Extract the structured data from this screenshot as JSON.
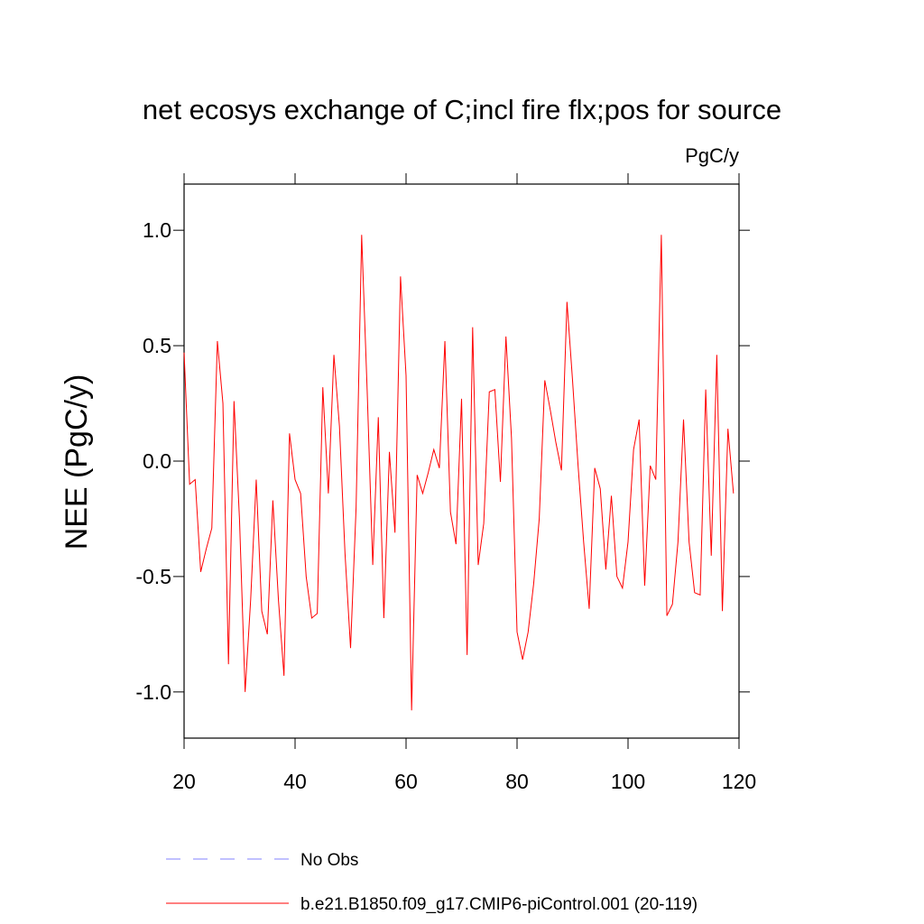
{
  "chart_data": {
    "type": "line",
    "title": "net ecosys exchange of C;incl fire flx;pos for source",
    "units": "PgC/y",
    "y_label": "NEE  (PgC/y)",
    "x": [
      20,
      21,
      22,
      23,
      24,
      25,
      26,
      27,
      28,
      29,
      30,
      31,
      32,
      33,
      34,
      35,
      36,
      37,
      38,
      39,
      40,
      41,
      42,
      43,
      44,
      45,
      46,
      47,
      48,
      49,
      50,
      51,
      52,
      53,
      54,
      55,
      56,
      57,
      58,
      59,
      60,
      61,
      62,
      63,
      64,
      65,
      66,
      67,
      68,
      69,
      70,
      71,
      72,
      73,
      74,
      75,
      76,
      77,
      78,
      79,
      80,
      81,
      82,
      83,
      84,
      85,
      86,
      87,
      88,
      89,
      90,
      91,
      92,
      93,
      94,
      95,
      96,
      97,
      98,
      99,
      100,
      101,
      102,
      103,
      104,
      105,
      106,
      107,
      108,
      109,
      110,
      111,
      112,
      113,
      114,
      115,
      116,
      117,
      118,
      119
    ],
    "series": [
      {
        "name": "b.e21.B1850.f09_g17.CMIP6-piControl.001 (20-119)",
        "color": "#ff0000",
        "values": [
          0.47,
          -0.1,
          -0.08,
          -0.48,
          -0.38,
          -0.29,
          0.52,
          0.25,
          -0.88,
          0.26,
          -0.26,
          -1.0,
          -0.6,
          -0.08,
          -0.65,
          -0.75,
          -0.17,
          -0.6,
          -0.93,
          0.12,
          -0.08,
          -0.14,
          -0.5,
          -0.68,
          -0.66,
          0.32,
          -0.14,
          0.46,
          0.15,
          -0.4,
          -0.81,
          -0.2,
          0.98,
          0.3,
          -0.45,
          0.19,
          -0.68,
          0.04,
          -0.31,
          0.8,
          0.37,
          -1.08,
          -0.06,
          -0.14,
          -0.05,
          0.05,
          -0.03,
          0.52,
          -0.22,
          -0.36,
          0.27,
          -0.84,
          0.58,
          -0.45,
          -0.27,
          0.3,
          0.31,
          -0.09,
          0.54,
          0.1,
          -0.74,
          -0.86,
          -0.74,
          -0.53,
          -0.25,
          0.35,
          0.22,
          0.08,
          -0.04,
          0.69,
          0.35,
          -0.02,
          -0.35,
          -0.64,
          -0.03,
          -0.12,
          -0.47,
          -0.15,
          -0.5,
          -0.55,
          -0.35,
          0.05,
          0.18,
          -0.54,
          -0.02,
          -0.08,
          0.98,
          -0.67,
          -0.62,
          -0.35,
          0.18,
          -0.35,
          -0.57,
          -0.58,
          0.31,
          -0.41,
          0.46,
          -0.65,
          0.14,
          -0.14
        ]
      }
    ],
    "legend_extra": {
      "name": "No Obs",
      "color": "#8080ff",
      "style": "dashed"
    },
    "xlim": [
      20,
      120
    ],
    "xticks": [
      20,
      40,
      60,
      80,
      100,
      120
    ],
    "ylim": [
      -1.2,
      1.2
    ],
    "yticks": [
      {
        "value": -1,
        "label": "-1.0"
      },
      -0.5,
      {
        "value": 0,
        "label": "0.0"
      },
      0.5,
      {
        "value": 1,
        "label": "1.0"
      }
    ]
  }
}
